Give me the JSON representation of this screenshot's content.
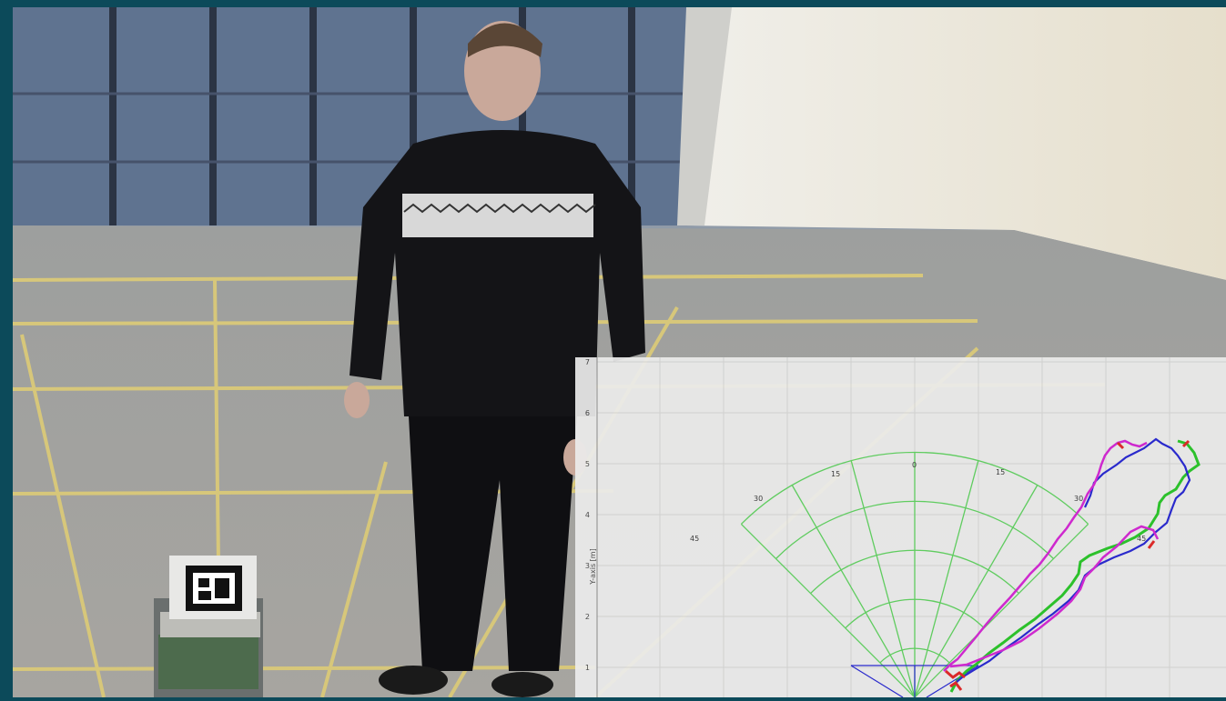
{
  "plot": {
    "y_axis_label": "Y-axis [m]",
    "y_ticks": [
      "7",
      "6",
      "5",
      "4",
      "3",
      "2",
      "1"
    ],
    "polar_angle_labels": [
      "45",
      "30",
      "15",
      "0",
      "15",
      "30",
      "45"
    ]
  },
  "colors": {
    "frame": "#0c4a5a",
    "plot_background": "#ececec",
    "polar_grid": "#5ad05a",
    "trace_magenta": "#d21fd2",
    "trace_green": "#22c422",
    "trace_blue": "#2020d0",
    "trace_red": "#e02020"
  }
}
